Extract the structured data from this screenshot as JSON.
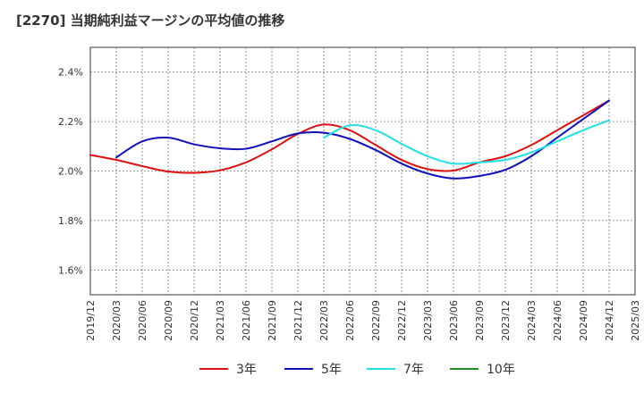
{
  "chart_data": {
    "type": "line",
    "title": "[2270]  当期純利益マージンの平均値の推移",
    "xlabel": "",
    "ylabel": "",
    "ylim": [
      1.5,
      2.5
    ],
    "yticks": [
      1.6,
      1.8,
      2.0,
      2.2,
      2.4
    ],
    "ytick_labels": [
      "1.6%",
      "1.8%",
      "2.0%",
      "2.2%",
      "2.4%"
    ],
    "x_ticks": [
      "2019/12",
      "2020/03",
      "2020/06",
      "2020/09",
      "2020/12",
      "2021/03",
      "2021/06",
      "2021/09",
      "2021/12",
      "2022/03",
      "2022/06",
      "2022/09",
      "2022/12",
      "2023/03",
      "2023/06",
      "2023/09",
      "2023/12",
      "2024/03",
      "2024/06",
      "2024/09",
      "2024/12",
      "2025/03"
    ],
    "grid": true,
    "legend_position": "bottom",
    "series": [
      {
        "name": "3年",
        "color": "#dd1111",
        "x": [
          "2019/12",
          "2020/03",
          "2020/06",
          "2020/09",
          "2020/12",
          "2021/03",
          "2021/06",
          "2021/09",
          "2021/12",
          "2022/03",
          "2022/06",
          "2022/09",
          "2022/12",
          "2023/03",
          "2023/06",
          "2023/09",
          "2023/12",
          "2024/03",
          "2024/06",
          "2024/09",
          "2024/12"
        ],
        "values": [
          2.065,
          2.045,
          2.02,
          1.998,
          1.993,
          2.003,
          2.035,
          2.088,
          2.15,
          2.188,
          2.165,
          2.105,
          2.045,
          2.008,
          2.002,
          2.035,
          2.06,
          2.105,
          2.165,
          2.225,
          2.285
        ]
      },
      {
        "name": "5年",
        "color": "#1111bb",
        "x": [
          "2020/03",
          "2020/06",
          "2020/09",
          "2020/12",
          "2021/03",
          "2021/06",
          "2021/09",
          "2021/12",
          "2022/03",
          "2022/06",
          "2022/09",
          "2022/12",
          "2023/03",
          "2023/06",
          "2023/09",
          "2023/12",
          "2024/03",
          "2024/06",
          "2024/09",
          "2024/12"
        ],
        "values": [
          2.055,
          2.12,
          2.135,
          2.108,
          2.092,
          2.09,
          2.12,
          2.152,
          2.155,
          2.13,
          2.085,
          2.03,
          1.99,
          1.97,
          1.98,
          2.005,
          2.06,
          2.135,
          2.21,
          2.285
        ]
      },
      {
        "name": "7年",
        "color": "#22e0e8",
        "x": [
          "2022/03",
          "2022/06",
          "2022/09",
          "2022/12",
          "2023/03",
          "2023/06",
          "2023/09",
          "2023/12",
          "2024/03",
          "2024/06",
          "2024/09",
          "2024/12"
        ],
        "values": [
          2.135,
          2.185,
          2.165,
          2.11,
          2.06,
          2.03,
          2.035,
          2.045,
          2.075,
          2.12,
          2.165,
          2.205
        ]
      },
      {
        "name": "10年",
        "color": "#228822",
        "x": [],
        "values": []
      }
    ]
  }
}
